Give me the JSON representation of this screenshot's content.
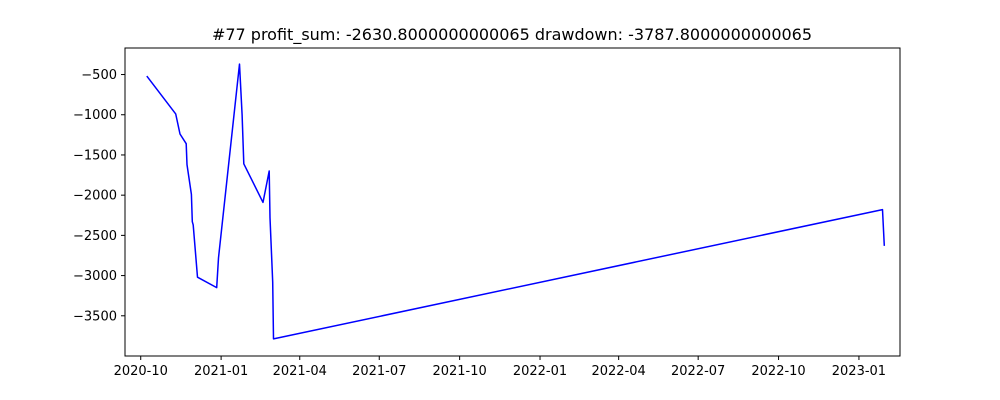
{
  "chart_data": {
    "type": "line",
    "title": "#77   profit_sum: -2630.8000000000065 drawdown: -3787.8000000000065",
    "xlabel": "",
    "ylabel": "",
    "x_tick_labels": [
      "2020-10",
      "2021-01",
      "2021-04",
      "2021-07",
      "2021-10",
      "2022-01",
      "2022-04",
      "2022-07",
      "2022-10",
      "2023-01"
    ],
    "y_tick_labels": [
      "−500",
      "−1000",
      "−1500",
      "−2000",
      "−2500",
      "−3000",
      "−3500"
    ],
    "y_ticks": [
      -500,
      -1000,
      -1500,
      -2000,
      -2500,
      -3000,
      -3500
    ],
    "x_ticks": [
      "2020-10-01",
      "2021-01-01",
      "2021-04-01",
      "2021-07-01",
      "2021-10-01",
      "2022-01-01",
      "2022-04-01",
      "2022-07-01",
      "2022-10-01",
      "2023-01-01"
    ],
    "xlim": [
      "2020-09-13",
      "2023-02-17"
    ],
    "ylim": [
      -4000,
      -170
    ],
    "grid": false,
    "series": [
      {
        "color": "#0000ff",
        "x": [
          "2020-10-08",
          "2020-11-10",
          "2020-11-15",
          "2020-11-22",
          "2020-11-23",
          "2020-11-28",
          "2020-11-29",
          "2020-11-30",
          "2020-12-05",
          "2020-12-27",
          "2020-12-29",
          "2021-01-22",
          "2021-01-25",
          "2021-01-27",
          "2021-02-18",
          "2021-02-25",
          "2021-02-26",
          "2021-03-01",
          "2021-03-02",
          "2023-01-28",
          "2023-01-30"
        ],
        "y": [
          -520,
          -990,
          -1240,
          -1360,
          -1620,
          -1990,
          -2330,
          -2370,
          -3020,
          -3150,
          -2780,
          -370,
          -1000,
          -1610,
          -2090,
          -1700,
          -2280,
          -3080,
          -3787.8,
          -2180,
          -2630.8
        ]
      }
    ]
  }
}
